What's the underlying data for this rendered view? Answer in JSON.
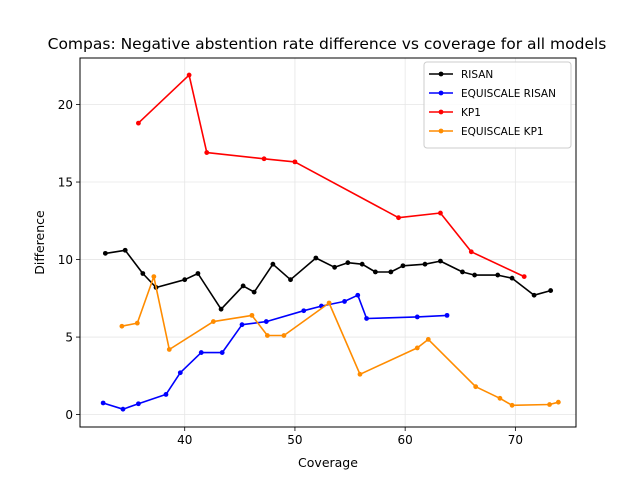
{
  "chart_data": {
    "type": "line",
    "title": "Compas: Negative abstention rate difference vs coverage for all models",
    "xlabel": "Coverage",
    "ylabel": "Difference",
    "xlim": [
      30.5,
      75.5
    ],
    "ylim": [
      -0.8,
      23.0
    ],
    "x_ticks": [
      40,
      50,
      60,
      70
    ],
    "y_ticks": [
      0,
      5,
      10,
      15,
      20
    ],
    "grid": true,
    "legend_position": "upper-right",
    "series": [
      {
        "name": "RISAN",
        "color": "#000000",
        "points": [
          [
            32.8,
            10.4
          ],
          [
            34.6,
            10.6
          ],
          [
            36.2,
            9.1
          ],
          [
            37.4,
            8.2
          ],
          [
            40.0,
            8.7
          ],
          [
            41.2,
            9.1
          ],
          [
            43.3,
            6.8
          ],
          [
            45.3,
            8.3
          ],
          [
            46.3,
            7.9
          ],
          [
            48.0,
            9.7
          ],
          [
            49.6,
            8.7
          ],
          [
            51.9,
            10.1
          ],
          [
            53.6,
            9.5
          ],
          [
            54.8,
            9.8
          ],
          [
            56.1,
            9.7
          ],
          [
            57.3,
            9.2
          ],
          [
            58.7,
            9.2
          ],
          [
            59.8,
            9.6
          ],
          [
            61.8,
            9.7
          ],
          [
            63.2,
            9.9
          ],
          [
            65.2,
            9.2
          ],
          [
            66.3,
            9.0
          ],
          [
            68.4,
            9.0
          ],
          [
            69.7,
            8.8
          ],
          [
            71.7,
            7.7
          ],
          [
            73.2,
            8.0
          ]
        ]
      },
      {
        "name": "EQUISCALE RISAN",
        "color": "#0000ff",
        "points": [
          [
            32.6,
            0.75
          ],
          [
            34.4,
            0.35
          ],
          [
            35.8,
            0.7
          ],
          [
            38.3,
            1.3
          ],
          [
            39.6,
            2.7
          ],
          [
            41.5,
            4.0
          ],
          [
            43.4,
            4.0
          ],
          [
            45.2,
            5.8
          ],
          [
            47.4,
            6.0
          ],
          [
            50.8,
            6.7
          ],
          [
            52.4,
            7.0
          ],
          [
            54.5,
            7.3
          ],
          [
            55.7,
            7.7
          ],
          [
            56.5,
            6.2
          ],
          [
            61.1,
            6.3
          ],
          [
            63.8,
            6.4
          ]
        ]
      },
      {
        "name": "KP1",
        "color": "#ff0000",
        "points": [
          [
            35.8,
            18.8
          ],
          [
            40.4,
            21.9
          ],
          [
            42.0,
            16.9
          ],
          [
            47.2,
            16.5
          ],
          [
            50.0,
            16.3
          ],
          [
            59.4,
            12.7
          ],
          [
            63.2,
            13.0
          ],
          [
            66.0,
            10.5
          ],
          [
            70.8,
            8.9
          ]
        ]
      },
      {
        "name": "EQUISCALE KP1",
        "color": "#ff8c00",
        "points": [
          [
            34.3,
            5.7
          ],
          [
            35.7,
            5.9
          ],
          [
            37.2,
            8.9
          ],
          [
            38.6,
            4.2
          ],
          [
            42.6,
            6.0
          ],
          [
            46.1,
            6.4
          ],
          [
            47.5,
            5.1
          ],
          [
            49.0,
            5.1
          ],
          [
            53.1,
            7.2
          ],
          [
            55.9,
            2.6
          ],
          [
            61.1,
            4.3
          ],
          [
            62.1,
            4.85
          ],
          [
            66.4,
            1.8
          ],
          [
            68.6,
            1.05
          ],
          [
            69.7,
            0.6
          ],
          [
            73.1,
            0.65
          ],
          [
            73.9,
            0.8
          ]
        ]
      }
    ]
  }
}
